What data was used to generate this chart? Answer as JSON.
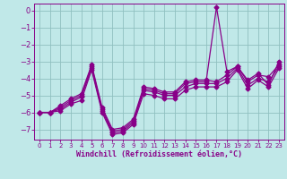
{
  "xlabel": "Windchill (Refroidissement éolien,°C)",
  "bg_color": "#c0e8e8",
  "grid_color": "#90c0c0",
  "line_color": "#880088",
  "xlim": [
    -0.5,
    23.5
  ],
  "ylim": [
    -7.6,
    0.4
  ],
  "yticks": [
    0,
    -1,
    -2,
    -3,
    -4,
    -5,
    -6,
    -7
  ],
  "xticks": [
    0,
    1,
    2,
    3,
    4,
    5,
    6,
    7,
    8,
    9,
    10,
    11,
    12,
    13,
    14,
    15,
    16,
    17,
    18,
    19,
    20,
    21,
    22,
    23
  ],
  "line1": [
    -6.0,
    -6.0,
    -5.9,
    -5.5,
    -5.3,
    -3.5,
    -6.0,
    -7.3,
    -7.2,
    -6.7,
    -4.9,
    -5.0,
    -5.2,
    -5.2,
    -4.7,
    -4.5,
    -4.5,
    -4.5,
    -4.2,
    -3.5,
    -4.6,
    -4.1,
    -4.5,
    -3.4
  ],
  "line2": [
    -6.0,
    -6.0,
    -5.8,
    -5.4,
    -5.1,
    -3.4,
    -5.9,
    -7.2,
    -7.1,
    -6.6,
    -4.7,
    -4.8,
    -5.0,
    -5.0,
    -4.5,
    -4.3,
    -4.3,
    -4.3,
    -4.0,
    -3.4,
    -4.4,
    -4.0,
    -4.2,
    -3.3
  ],
  "line3": [
    -6.0,
    -6.0,
    -5.7,
    -5.3,
    -5.0,
    -3.3,
    -5.8,
    -7.1,
    -7.0,
    -6.5,
    -4.6,
    -4.7,
    -4.9,
    -4.9,
    -4.3,
    -4.2,
    -4.2,
    0.2,
    -3.6,
    -3.3,
    -4.2,
    -3.8,
    -3.9,
    -3.2
  ],
  "line4": [
    -6.0,
    -6.0,
    -5.6,
    -5.2,
    -4.9,
    -3.2,
    -5.7,
    -7.0,
    -6.9,
    -6.4,
    -4.5,
    -4.6,
    -4.8,
    -4.8,
    -4.2,
    -4.1,
    -4.1,
    -4.2,
    -3.8,
    -3.3,
    -4.1,
    -3.7,
    -4.4,
    -3.0
  ]
}
